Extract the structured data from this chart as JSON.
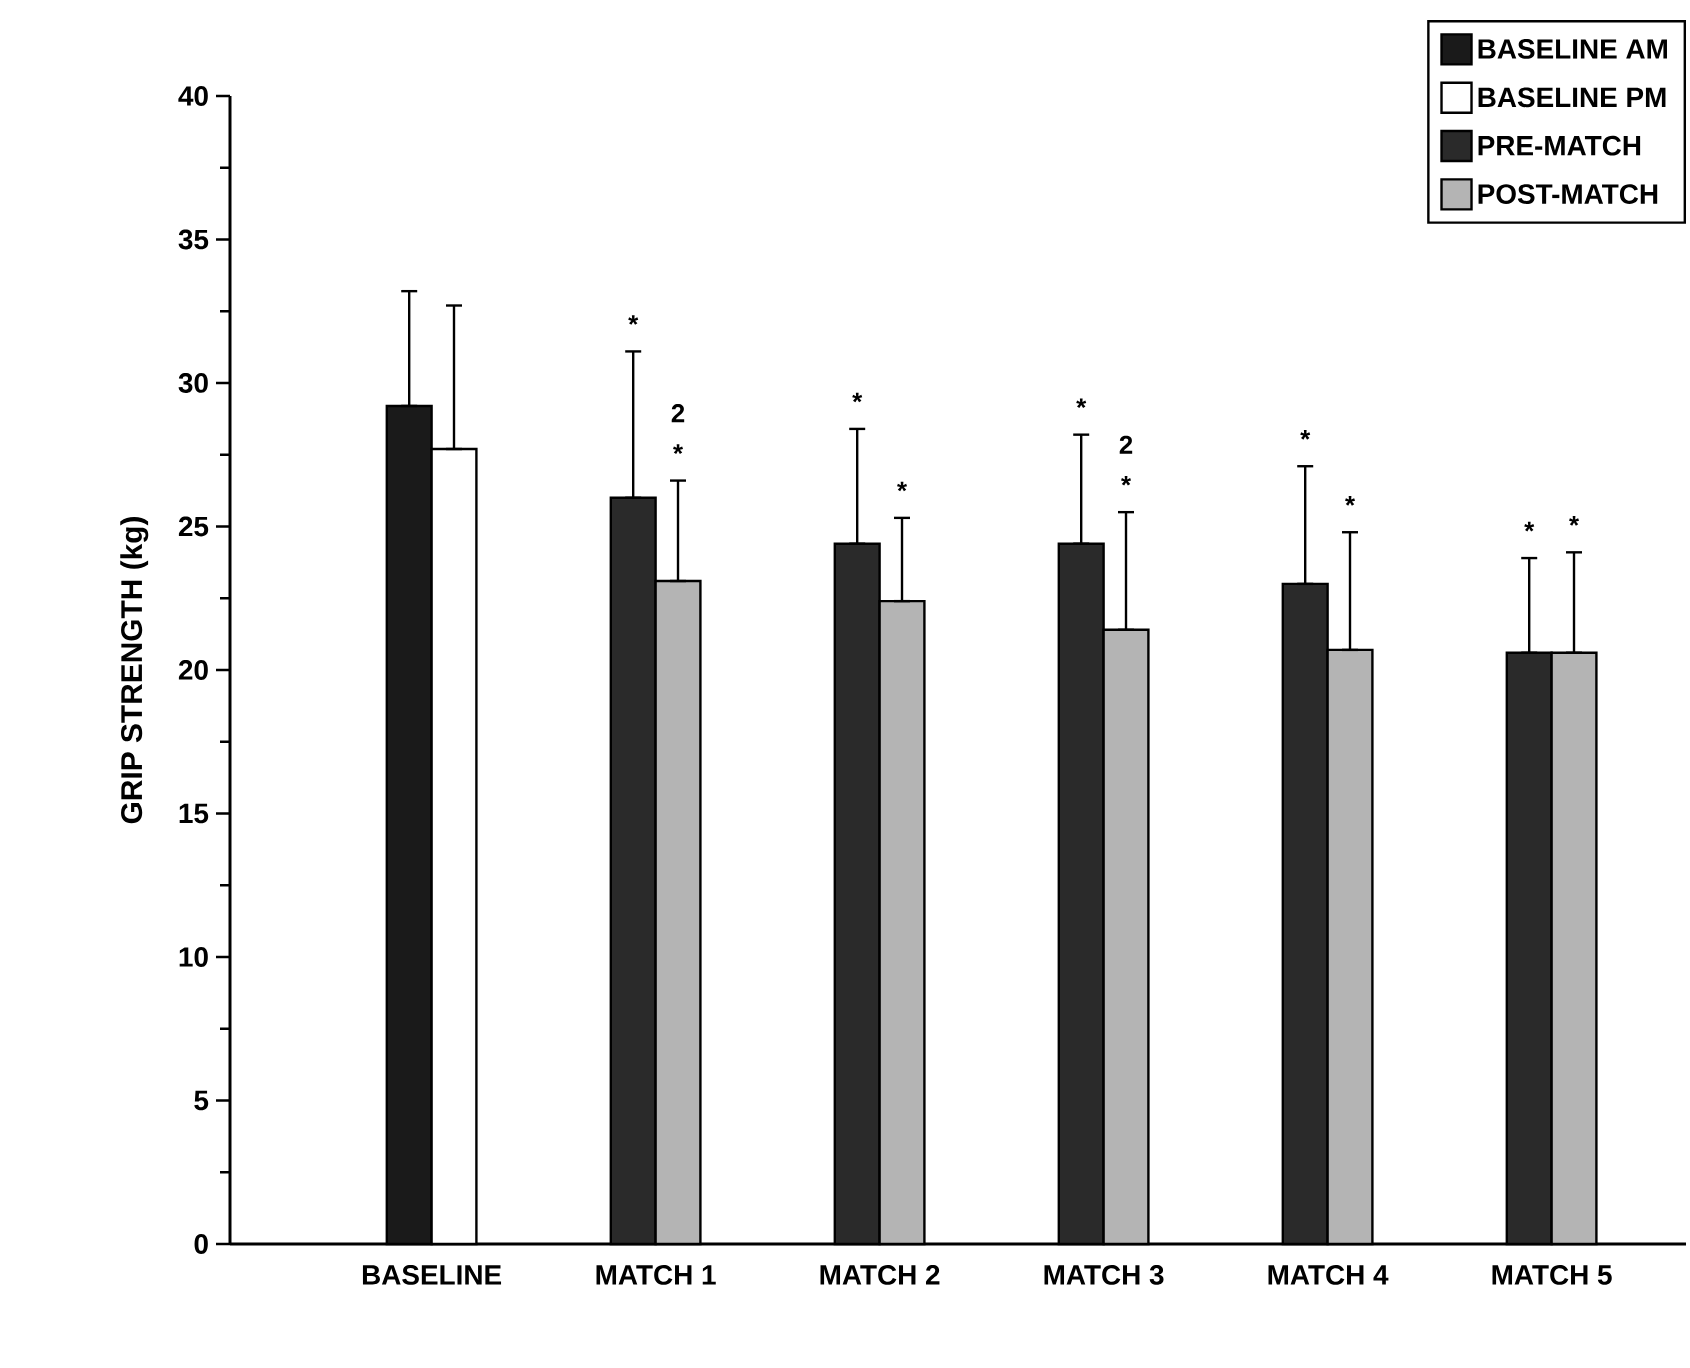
{
  "chart_data": {
    "type": "bar",
    "ylabel": "GRIP STRENGTH (kg)",
    "categories": [
      "BASELINE",
      "MATCH 1",
      "MATCH 2",
      "MATCH 3",
      "MATCH 4",
      "MATCH 5"
    ],
    "series": [
      {
        "name": "BASELINE AM",
        "color": "#1a1a1a",
        "values": [
          29.2,
          null,
          null,
          null,
          null,
          null
        ],
        "errors": [
          [
            29.2,
            33.2
          ],
          null,
          null,
          null,
          null,
          null
        ]
      },
      {
        "name": "BASELINE PM",
        "color": "#ffffff",
        "values": [
          27.7,
          null,
          null,
          null,
          null,
          null
        ],
        "errors": [
          [
            27.7,
            32.7
          ],
          null,
          null,
          null,
          null,
          null
        ]
      },
      {
        "name": "PRE-MATCH",
        "color": "#2a2a2a",
        "values": [
          null,
          26.0,
          24.4,
          24.4,
          23.0,
          20.6
        ],
        "errors": [
          null,
          [
            26.0,
            31.1
          ],
          [
            24.4,
            28.4
          ],
          [
            24.4,
            28.2
          ],
          [
            23.0,
            27.1
          ],
          [
            20.6,
            23.9
          ]
        ]
      },
      {
        "name": "POST-MATCH",
        "color": "#b4b4b4",
        "values": [
          null,
          23.1,
          22.4,
          21.4,
          20.7,
          20.6
        ],
        "errors": [
          null,
          [
            23.1,
            26.6
          ],
          [
            22.4,
            25.3
          ],
          [
            21.4,
            25.5
          ],
          [
            20.7,
            24.8
          ],
          [
            20.6,
            24.1
          ]
        ]
      }
    ],
    "ylim": [
      0,
      40
    ],
    "yticks": [
      0,
      5,
      10,
      15,
      20,
      25,
      30,
      35,
      40
    ],
    "grid": false,
    "legend": "top right",
    "annotations": [
      "*",
      "2",
      "*",
      "*",
      "*",
      "*",
      "2",
      "*",
      "*",
      "*",
      "*",
      "*"
    ]
  }
}
